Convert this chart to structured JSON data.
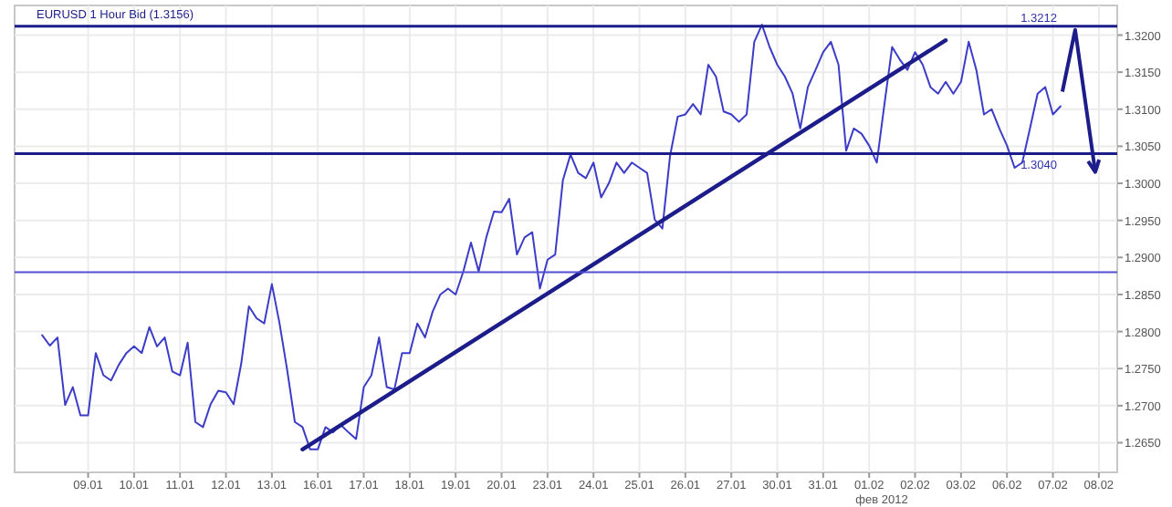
{
  "chart_data": {
    "type": "line",
    "title": "EURUSD 1 Hour Bid (1.3156)",
    "annotations": [
      "фев 2012"
    ],
    "ylim": [
      1.261,
      1.324
    ],
    "categories": [
      null,
      null,
      null,
      null,
      null,
      null,
      "09.01",
      null,
      null,
      null,
      null,
      null,
      "10.01",
      null,
      null,
      null,
      null,
      null,
      "11.01",
      null,
      null,
      null,
      null,
      null,
      "12.01",
      null,
      null,
      null,
      null,
      null,
      "13.01",
      null,
      null,
      null,
      null,
      null,
      "16.01",
      null,
      null,
      null,
      null,
      null,
      "17.01",
      null,
      null,
      null,
      null,
      null,
      "18.01",
      null,
      null,
      null,
      null,
      null,
      "19.01",
      null,
      null,
      null,
      null,
      null,
      "20.01",
      null,
      null,
      null,
      null,
      null,
      "23.01",
      null,
      null,
      null,
      null,
      null,
      "24.01",
      null,
      null,
      null,
      null,
      null,
      "25.01",
      null,
      null,
      null,
      null,
      null,
      "26.01",
      null,
      null,
      null,
      null,
      null,
      "27.01",
      null,
      null,
      null,
      null,
      null,
      "30.01",
      null,
      null,
      null,
      null,
      null,
      "31.01",
      null,
      null,
      null,
      null,
      null,
      "01.02",
      null,
      null,
      null,
      null,
      null,
      "02.02",
      null,
      null,
      null,
      null,
      null,
      "03.02",
      null,
      null,
      null,
      null,
      null,
      "06.02",
      null,
      null,
      null,
      null,
      null,
      "07.02",
      null,
      null,
      null,
      null,
      null,
      "08.02"
    ],
    "yticks": [
      {
        "value": 1.265,
        "label": "1.2650"
      },
      {
        "value": 1.27,
        "label": "1.2700"
      },
      {
        "value": 1.275,
        "label": "1.2750"
      },
      {
        "value": 1.28,
        "label": "1.2800"
      },
      {
        "value": 1.285,
        "label": "1.2850"
      },
      {
        "value": 1.29,
        "label": "1.2900"
      },
      {
        "value": 1.295,
        "label": "1.2950"
      },
      {
        "value": 1.3,
        "label": "1.3000"
      },
      {
        "value": 1.305,
        "label": "1.3050"
      },
      {
        "value": 1.31,
        "label": "1.3100"
      },
      {
        "value": 1.315,
        "label": "1.3150"
      },
      {
        "value": 1.32,
        "label": "1.3200"
      }
    ],
    "grid": true,
    "marker": "none",
    "line_style": "solid",
    "ref_lines": [
      {
        "axis": "y",
        "value": 1.3212,
        "label": "1.3212",
        "color": "#1c1c8a"
      },
      {
        "axis": "y",
        "value": 1.304,
        "label": "1.3040",
        "color": "#1c1c8a"
      },
      {
        "axis": "y",
        "value": 1.288,
        "label": null,
        "color": "#5050d0"
      }
    ],
    "series": [
      {
        "color": "#3c3cc8",
        "values": [
          1.2795,
          1.2781,
          1.2792,
          1.2701,
          1.2725,
          1.2687,
          1.2687,
          1.2771,
          1.2741,
          1.2734,
          1.2755,
          1.2771,
          1.278,
          1.2771,
          1.2806,
          1.278,
          1.2792,
          1.2746,
          1.2741,
          1.2785,
          1.2678,
          1.2671,
          1.2702,
          1.272,
          1.2718,
          1.2702,
          1.2757,
          1.2834,
          1.2818,
          1.2811,
          1.2864,
          1.2811,
          1.2748,
          1.2678,
          1.2671,
          1.2641,
          1.2641,
          1.2671,
          1.2664,
          1.2674,
          1.2664,
          1.2655,
          1.2725,
          1.2741,
          1.2792,
          1.2725,
          1.2722,
          1.2771,
          1.2771,
          1.2811,
          1.2792,
          1.2827,
          1.285,
          1.2858,
          1.285,
          1.2881,
          1.292,
          1.2881,
          1.2927,
          1.2962,
          1.2961,
          1.2979,
          1.2904,
          1.2927,
          1.2934,
          1.2858,
          1.2897,
          1.2904,
          1.3004,
          1.3039,
          1.3014,
          1.3007,
          1.3028,
          1.2981,
          1.3,
          1.3028,
          1.3014,
          1.3028,
          1.3021,
          1.3014,
          1.2951,
          1.2939,
          1.3037,
          1.309,
          1.3093,
          1.3107,
          1.3093,
          1.316,
          1.3144,
          1.3097,
          1.3093,
          1.3083,
          1.3093,
          1.3191,
          1.3214,
          1.3184,
          1.316,
          1.3144,
          1.3121,
          1.3074,
          1.313,
          1.3153,
          1.3177,
          1.3191,
          1.316,
          1.3044,
          1.3074,
          1.3067,
          1.3051,
          1.3028,
          1.3107,
          1.3184,
          1.3167,
          1.3153,
          1.3177,
          1.316,
          1.313,
          1.3121,
          1.3137,
          1.3121,
          1.3137,
          1.3191,
          1.3153,
          1.3093,
          1.31,
          1.3074,
          1.3051,
          1.3021,
          1.3028,
          1.3074,
          1.3121,
          1.313,
          1.3093,
          1.3104,
          null,
          null,
          null,
          null,
          null
        ]
      },
      {
        "type": "line",
        "color": "#1c1c8a",
        "values": [
          null,
          null,
          null,
          null,
          null,
          null,
          null,
          null,
          null,
          null,
          null,
          null,
          null,
          null,
          null,
          null,
          null,
          null,
          null,
          null,
          null,
          null,
          null,
          null,
          null,
          null,
          null,
          null,
          null,
          null,
          null,
          null,
          null,
          null,
          1.2641,
          null,
          null,
          null,
          null,
          null,
          null,
          null,
          null,
          null,
          null,
          null,
          null,
          null,
          null,
          null,
          null,
          null,
          null,
          null,
          null,
          null,
          null,
          null,
          null,
          null,
          null,
          null,
          null,
          null,
          null,
          null,
          null,
          null,
          null,
          null,
          null,
          null,
          null,
          null,
          null,
          null,
          null,
          null,
          null,
          null,
          null,
          null,
          null,
          null,
          null,
          null,
          null,
          null,
          null,
          null,
          null,
          null,
          null,
          null,
          null,
          null,
          null,
          null,
          null,
          null,
          null,
          null,
          null,
          null,
          null,
          null,
          null,
          null,
          null,
          null,
          null,
          null,
          null,
          null,
          null,
          null,
          null,
          null,
          1.3193,
          null,
          null,
          null,
          null,
          null,
          null,
          null,
          null,
          null,
          null,
          null,
          null,
          null,
          null,
          null,
          null,
          null,
          null,
          null,
          null
        ]
      }
    ]
  }
}
